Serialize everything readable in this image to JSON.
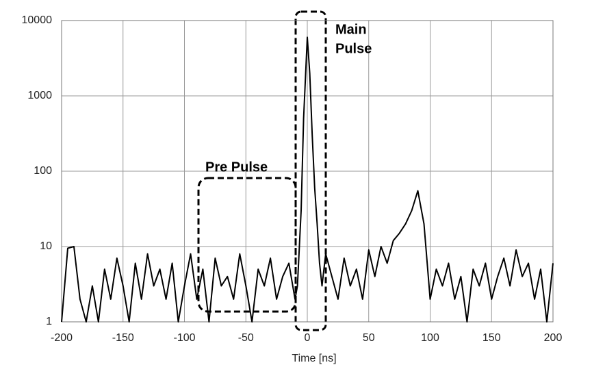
{
  "chart_data": {
    "type": "line",
    "x_label": "Time [ns]",
    "x": [
      -200,
      -195,
      -190,
      -185,
      -180,
      -175,
      -170,
      -165,
      -160,
      -155,
      -150,
      -145,
      -140,
      -135,
      -130,
      -125,
      -120,
      -115,
      -110,
      -105,
      -100,
      -95,
      -90,
      -85,
      -80,
      -75,
      -70,
      -65,
      -60,
      -55,
      -50,
      -45,
      -40,
      -35,
      -30,
      -25,
      -20,
      -15,
      -10,
      -8,
      -5,
      -3,
      0,
      2,
      4,
      6,
      8,
      10,
      12,
      15,
      20,
      25,
      30,
      35,
      40,
      45,
      50,
      55,
      60,
      65,
      70,
      75,
      80,
      85,
      90,
      95,
      100,
      105,
      110,
      115,
      120,
      125,
      130,
      135,
      140,
      145,
      150,
      155,
      160,
      165,
      170,
      175,
      180,
      185,
      190,
      195,
      200
    ],
    "values": [
      1,
      9.5,
      10,
      2,
      1,
      3,
      1,
      5,
      2,
      7,
      3,
      1,
      6,
      2,
      8,
      3,
      5,
      2,
      6,
      1,
      3,
      8,
      2,
      5,
      1,
      7,
      3,
      4,
      2,
      8,
      3,
      1,
      5,
      3,
      7,
      2,
      4,
      6,
      2,
      3,
      30,
      500,
      6000,
      2000,
      300,
      60,
      20,
      6,
      3,
      8,
      4,
      2,
      7,
      3,
      5,
      2,
      9,
      4,
      10,
      6,
      12,
      15,
      20,
      30,
      55,
      20,
      2,
      5,
      3,
      6,
      2,
      4,
      1,
      5,
      3,
      6,
      2,
      4,
      7,
      3,
      9,
      4,
      6,
      2,
      5,
      1,
      6
    ],
    "color": "#000000",
    "log_y": true,
    "grid": true,
    "xlim": [
      -200,
      200
    ],
    "xticks": [
      -200,
      -150,
      -100,
      -50,
      0,
      50,
      100,
      150,
      200
    ],
    "ylim": [
      1,
      10000
    ],
    "yticks": [
      1,
      10,
      100,
      1000,
      10000
    ],
    "annotations": [
      "Main",
      "Pulse",
      "Pre Pulse"
    ]
  }
}
